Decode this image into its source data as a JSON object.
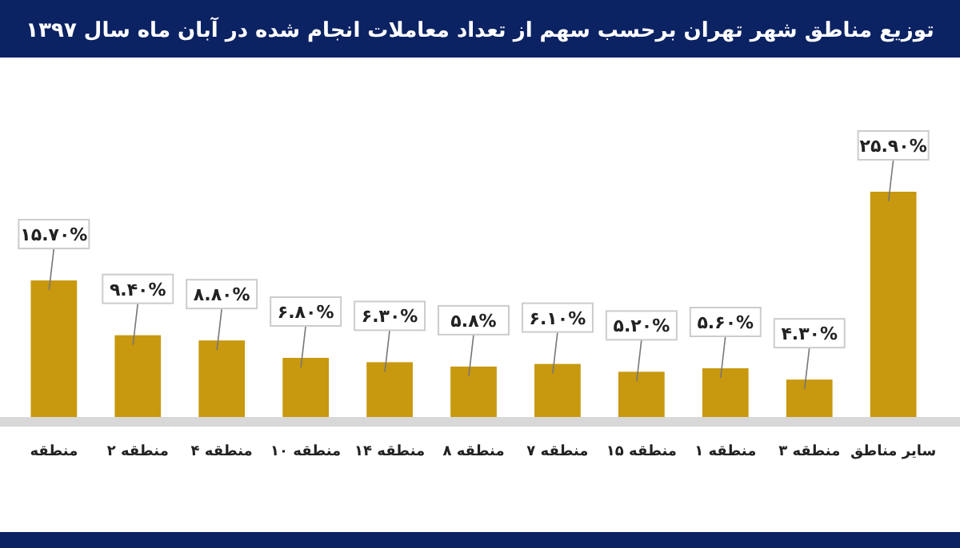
{
  "chart_data": {
    "type": "bar",
    "title": "توزیع مناطق شهر تهران برحسب سهم از تعداد معاملات انجام شده در آبان ماه سال ۱۳۹۷",
    "categories": [
      "منطقه",
      "منطقه ۲",
      "منطقه ۴",
      "منطقه ۱۰",
      "منطقه ۱۴",
      "منطقه ۸",
      "منطقه ۷",
      "منطقه ۱۵",
      "منطقه ۱",
      "منطقه ۳",
      "سایر مناطق"
    ],
    "values": [
      15.7,
      9.4,
      8.8,
      6.8,
      6.3,
      5.8,
      6.1,
      5.2,
      5.6,
      4.3,
      25.9
    ],
    "value_labels": [
      "۱۵.۷۰%",
      "۹.۴۰%",
      "۸.۸۰%",
      "۶.۸۰%",
      "۶.۳۰%",
      "۵.۸%",
      "۶.۱۰%",
      "۵.۲۰%",
      "۵.۶۰%",
      "۴.۳۰%",
      "۲۵.۹۰%"
    ],
    "color": "#c8980e"
  }
}
